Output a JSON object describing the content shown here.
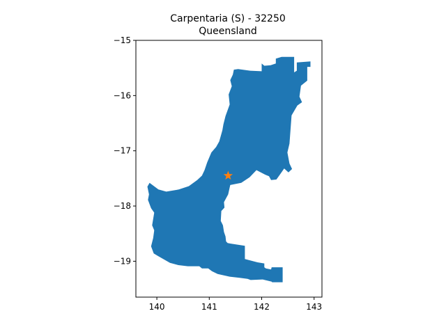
{
  "title_line1": "Carpentaria (S) - 32250",
  "title_line2": "Queensland",
  "colors": {
    "region_fill": "#1f77b4",
    "marker": "#ff7f0e",
    "axis": "#000000",
    "background": "#ffffff"
  },
  "map_data": {
    "type": "region-map",
    "xlim": [
      139.6,
      143.15
    ],
    "ylim": [
      -19.65,
      -15.0
    ],
    "xticks": [
      {
        "value": 140,
        "label": "140"
      },
      {
        "value": 141,
        "label": "141"
      },
      {
        "value": 142,
        "label": "142"
      },
      {
        "value": 143,
        "label": "143"
      }
    ],
    "yticks": [
      {
        "value": -15,
        "label": "−15"
      },
      {
        "value": -16,
        "label": "−16"
      },
      {
        "value": -17,
        "label": "−17"
      },
      {
        "value": -18,
        "label": "−18"
      },
      {
        "value": -19,
        "label": "−19"
      }
    ],
    "marker": {
      "lon": 141.36,
      "lat": -17.45,
      "symbol": "star"
    },
    "region_outline": [
      [
        141.47,
        -15.53
      ],
      [
        141.55,
        -15.52
      ],
      [
        141.78,
        -15.55
      ],
      [
        142.0,
        -15.56
      ],
      [
        142.0,
        -15.42
      ],
      [
        142.05,
        -15.46
      ],
      [
        142.17,
        -15.45
      ],
      [
        142.27,
        -15.42
      ],
      [
        142.27,
        -15.33
      ],
      [
        142.38,
        -15.3
      ],
      [
        142.62,
        -15.3
      ],
      [
        142.62,
        -15.58
      ],
      [
        142.67,
        -15.55
      ],
      [
        142.67,
        -15.4
      ],
      [
        142.93,
        -15.38
      ],
      [
        142.93,
        -15.48
      ],
      [
        142.87,
        -15.48
      ],
      [
        142.87,
        -15.73
      ],
      [
        142.75,
        -15.82
      ],
      [
        142.72,
        -16.02
      ],
      [
        142.77,
        -16.12
      ],
      [
        142.68,
        -16.18
      ],
      [
        142.57,
        -16.36
      ],
      [
        142.53,
        -16.87
      ],
      [
        142.49,
        -17.03
      ],
      [
        142.53,
        -17.23
      ],
      [
        142.58,
        -17.33
      ],
      [
        142.51,
        -17.39
      ],
      [
        142.43,
        -17.32
      ],
      [
        142.35,
        -17.43
      ],
      [
        142.28,
        -17.52
      ],
      [
        142.18,
        -17.53
      ],
      [
        142.14,
        -17.46
      ],
      [
        142.06,
        -17.43
      ],
      [
        141.9,
        -17.35
      ],
      [
        141.77,
        -17.48
      ],
      [
        141.61,
        -17.58
      ],
      [
        141.4,
        -17.62
      ],
      [
        141.36,
        -17.79
      ],
      [
        141.28,
        -17.93
      ],
      [
        141.29,
        -18.03
      ],
      [
        141.23,
        -18.09
      ],
      [
        141.22,
        -18.27
      ],
      [
        141.26,
        -18.35
      ],
      [
        141.28,
        -18.47
      ],
      [
        141.31,
        -18.55
      ],
      [
        141.32,
        -18.64
      ],
      [
        141.35,
        -18.67
      ],
      [
        141.4,
        -18.68
      ],
      [
        141.68,
        -18.72
      ],
      [
        141.68,
        -18.96
      ],
      [
        141.92,
        -19.02
      ],
      [
        142.05,
        -19.04
      ],
      [
        142.05,
        -19.11
      ],
      [
        142.08,
        -19.13
      ],
      [
        142.18,
        -19.15
      ],
      [
        142.19,
        -19.11
      ],
      [
        142.4,
        -19.11
      ],
      [
        142.4,
        -19.38
      ],
      [
        142.2,
        -19.38
      ],
      [
        142.19,
        -19.37
      ],
      [
        142.02,
        -19.33
      ],
      [
        141.79,
        -19.34
      ],
      [
        141.73,
        -19.32
      ],
      [
        141.58,
        -19.3
      ],
      [
        141.39,
        -19.28
      ],
      [
        141.16,
        -19.23
      ],
      [
        141.05,
        -19.18
      ],
      [
        140.98,
        -19.13
      ],
      [
        140.86,
        -19.13
      ],
      [
        140.81,
        -19.09
      ],
      [
        140.59,
        -19.09
      ],
      [
        140.41,
        -19.07
      ],
      [
        140.25,
        -19.03
      ],
      [
        140.03,
        -18.91
      ],
      [
        139.94,
        -18.86
      ],
      [
        139.89,
        -18.73
      ],
      [
        139.93,
        -18.58
      ],
      [
        139.95,
        -18.44
      ],
      [
        139.91,
        -18.35
      ],
      [
        139.95,
        -18.12
      ],
      [
        139.89,
        -18.04
      ],
      [
        139.83,
        -17.89
      ],
      [
        139.85,
        -17.79
      ],
      [
        139.82,
        -17.65
      ],
      [
        139.86,
        -17.58
      ],
      [
        140.03,
        -17.7
      ],
      [
        140.18,
        -17.74
      ],
      [
        140.42,
        -17.7
      ],
      [
        140.61,
        -17.64
      ],
      [
        140.77,
        -17.53
      ],
      [
        140.86,
        -17.45
      ],
      [
        140.91,
        -17.35
      ],
      [
        140.96,
        -17.21
      ],
      [
        141.04,
        -17.03
      ],
      [
        141.13,
        -16.93
      ],
      [
        141.19,
        -16.83
      ],
      [
        141.25,
        -16.63
      ],
      [
        141.27,
        -16.52
      ],
      [
        141.31,
        -16.37
      ],
      [
        141.39,
        -16.16
      ],
      [
        141.37,
        -15.98
      ],
      [
        141.43,
        -15.83
      ],
      [
        141.4,
        -15.72
      ],
      [
        141.45,
        -15.62
      ]
    ]
  }
}
